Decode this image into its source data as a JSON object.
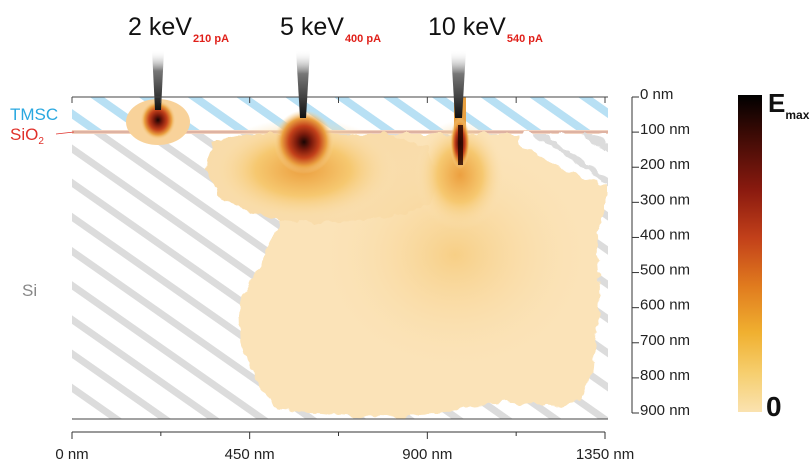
{
  "beams": [
    {
      "energy": "2 keV",
      "current": "210 pA"
    },
    {
      "energy": "5 keV",
      "current": "400 pA"
    },
    {
      "energy": "10 keV",
      "current": "540 pA"
    }
  ],
  "layers": {
    "tmsc": "TMSC",
    "sio2_main": "SiO",
    "sio2_sub": "2",
    "si": "Si"
  },
  "depth_axis": {
    "ticks": [
      "0 nm",
      "100 nm",
      "200 nm",
      "300 nm",
      "400 nm",
      "500 nm",
      "600 nm",
      "700 nm",
      "800 nm",
      "900 nm"
    ],
    "values": [
      0,
      100,
      200,
      300,
      400,
      500,
      600,
      700,
      800,
      900
    ]
  },
  "lateral_axis": {
    "ticks": [
      "0 nm",
      "450 nm",
      "900 nm",
      "1350 nm"
    ],
    "values": [
      0,
      450,
      900,
      1350
    ]
  },
  "colorbar": {
    "max_main": "E",
    "max_sub": "max",
    "min_label": "0",
    "stops": [
      "#000000",
      "#3a0a05",
      "#8a1a0f",
      "#c2401a",
      "#e07a1e",
      "#f0b030",
      "#f6cf70",
      "#fae2b0"
    ]
  },
  "colors": {
    "tmsc": "#2aa8e0",
    "sio2": "#e0302a",
    "current": "#e0201a",
    "hatch": "#dcdcdc",
    "tmsc_hatch": "#b8e0f4"
  }
}
